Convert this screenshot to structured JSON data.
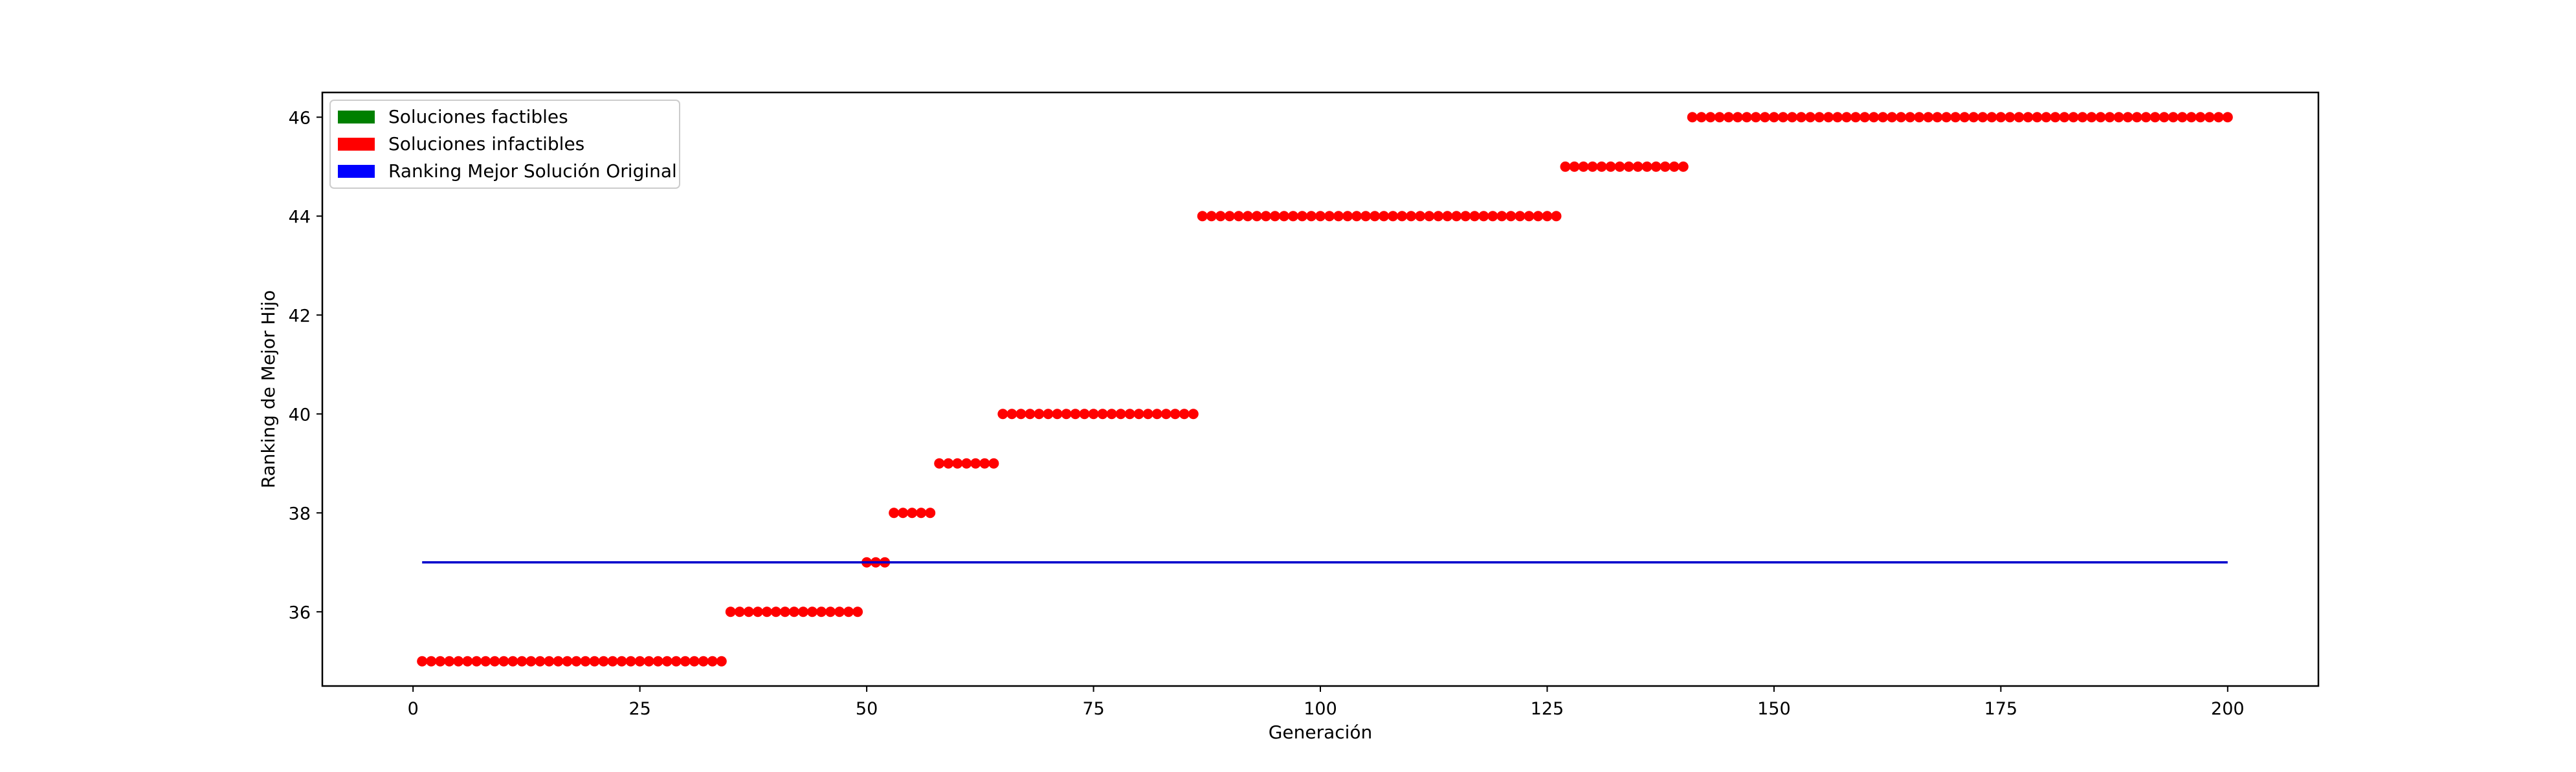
{
  "chart_data": {
    "type": "scatter",
    "title": "",
    "xlabel": "Generación",
    "ylabel": "Ranking de Mejor Hijo",
    "xlim": [
      -10,
      210
    ],
    "ylim": [
      34.5,
      46.5
    ],
    "x_ticks": [
      0,
      25,
      50,
      75,
      100,
      125,
      150,
      175,
      200
    ],
    "y_ticks": [
      36,
      38,
      40,
      42,
      44,
      46
    ],
    "grid": false,
    "legend_position": "top-left",
    "legend": [
      {
        "label": "Soluciones factibles",
        "color": "#008000"
      },
      {
        "label": "Soluciones infactibles",
        "color": "#ff0000"
      },
      {
        "label": "Ranking Mejor Solución Original",
        "color": "#0000ff"
      }
    ],
    "reference_line": {
      "name": "Ranking Mejor Solución Original",
      "y": 37,
      "x_start": 1,
      "x_end": 200,
      "color": "#0000cc"
    },
    "series": [
      {
        "name": "Soluciones infactibles",
        "color": "#ff0000",
        "segments": [
          {
            "x_start": 1,
            "x_end": 34,
            "y": 35
          },
          {
            "x_start": 35,
            "x_end": 49,
            "y": 36
          },
          {
            "x_start": 50,
            "x_end": 52,
            "y": 37
          },
          {
            "x_start": 53,
            "x_end": 57,
            "y": 38
          },
          {
            "x_start": 58,
            "x_end": 64,
            "y": 39
          },
          {
            "x_start": 65,
            "x_end": 86,
            "y": 40
          },
          {
            "x_start": 87,
            "x_end": 126,
            "y": 44
          },
          {
            "x_start": 127,
            "x_end": 140,
            "y": 45
          },
          {
            "x_start": 141,
            "x_end": 200,
            "y": 46
          }
        ]
      }
    ]
  }
}
